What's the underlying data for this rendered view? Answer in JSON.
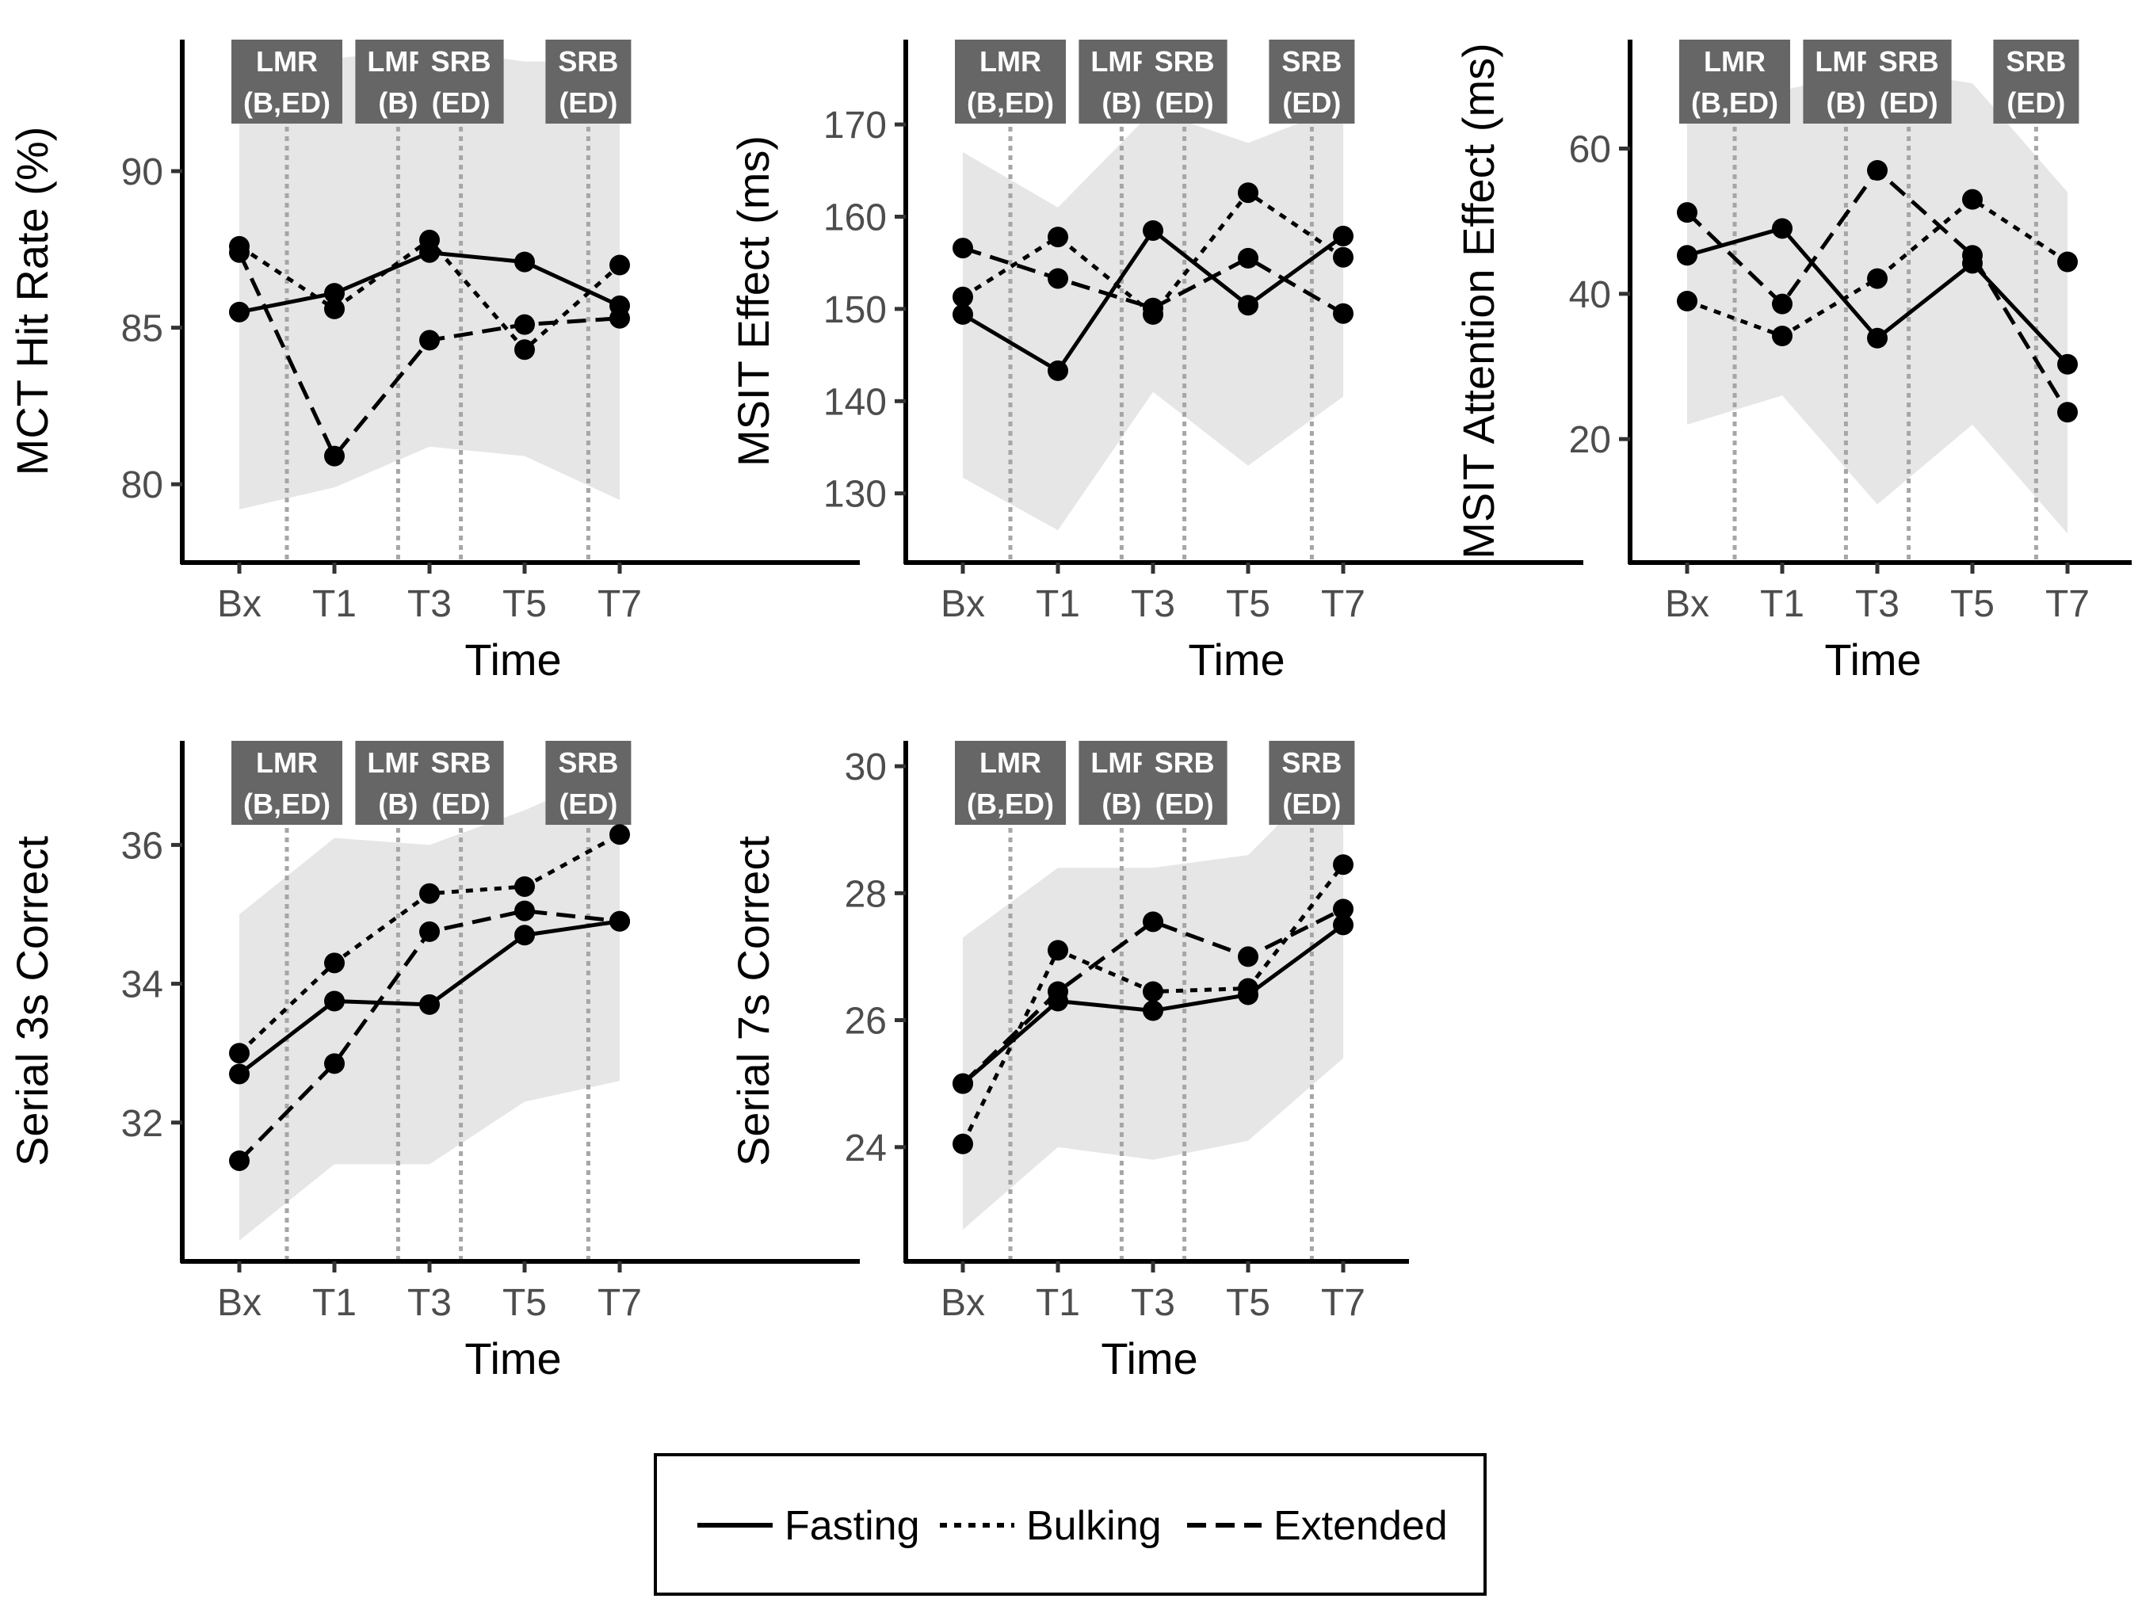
{
  "figure": {
    "legend": {
      "items": [
        {
          "label": "Fasting",
          "dash": "solid"
        },
        {
          "label": "Bulking",
          "dash": "dotted"
        },
        {
          "label": "Extended",
          "dash": "dashed"
        }
      ]
    }
  },
  "chart_data": [
    {
      "type": "line",
      "ylabel": "MCT Hit Rate (%)",
      "xlabel": "Time",
      "categories": [
        "Bx",
        "T1",
        "T3",
        "T5",
        "T7"
      ],
      "ylim": [
        77.5,
        94.2
      ],
      "yticks": [
        80,
        85,
        90
      ],
      "grid": false,
      "ribbon": {
        "lower": [
          79.2,
          79.9,
          81.2,
          80.9,
          79.5
        ],
        "upper": [
          93.3,
          93.6,
          93.9,
          93.5,
          93.5
        ]
      },
      "phases": [
        {
          "line1": "LMR",
          "line2": "(B,ED)",
          "at": 0.5
        },
        {
          "line1": "LMR",
          "line2": "(B)",
          "at": 1.67
        },
        {
          "line1": "SRB",
          "line2": "(ED)",
          "at": 2.33
        },
        {
          "line1": "SRB",
          "line2": "(ED)",
          "at": 3.67
        }
      ],
      "series": [
        {
          "name": "Fasting",
          "dash": "solid",
          "values": [
            85.5,
            86.1,
            87.4,
            87.1,
            85.7
          ]
        },
        {
          "name": "Bulking",
          "dash": "dotted",
          "values": [
            87.6,
            85.6,
            87.8,
            84.3,
            87.0
          ]
        },
        {
          "name": "Extended",
          "dash": "dashed",
          "values": [
            87.4,
            80.9,
            84.6,
            85.1,
            85.3
          ]
        }
      ]
    },
    {
      "type": "line",
      "ylabel": "MSIT Effect (ms)",
      "xlabel": "Time",
      "categories": [
        "Bx",
        "T1",
        "T3",
        "T5",
        "T7"
      ],
      "ylim": [
        122.5,
        179.2
      ],
      "yticks": [
        130,
        140,
        150,
        160,
        170
      ],
      "grid": false,
      "ribbon": {
        "lower": [
          131.7,
          126.0,
          141.0,
          133.0,
          140.5
        ],
        "upper": [
          167.0,
          161.0,
          171.5,
          168.0,
          172.0
        ]
      },
      "phases": [
        {
          "line1": "LMR",
          "line2": "(B,ED)",
          "at": 0.5
        },
        {
          "line1": "LMR",
          "line2": "(B)",
          "at": 1.67
        },
        {
          "line1": "SRB",
          "line2": "(ED)",
          "at": 2.33
        },
        {
          "line1": "SRB",
          "line2": "(ED)",
          "at": 3.67
        }
      ],
      "series": [
        {
          "name": "Fasting",
          "dash": "solid",
          "values": [
            149.4,
            143.3,
            158.5,
            150.4,
            157.9
          ]
        },
        {
          "name": "Bulking",
          "dash": "dotted",
          "values": [
            151.3,
            157.8,
            149.4,
            162.6,
            155.6
          ]
        },
        {
          "name": "Extended",
          "dash": "dashed",
          "values": [
            156.6,
            153.3,
            150.1,
            155.5,
            149.5
          ]
        }
      ]
    },
    {
      "type": "line",
      "ylabel": "MSIT Attention Effect (ms)",
      "xlabel": "Time",
      "categories": [
        "Bx",
        "T1",
        "T3",
        "T5",
        "T7"
      ],
      "ylim": [
        3.0,
        75.0
      ],
      "yticks": [
        20,
        40,
        60
      ],
      "grid": false,
      "ribbon": {
        "lower": [
          22.0,
          26.0,
          11.0,
          22.0,
          7.0
        ],
        "upper": [
          69.0,
          68.0,
          71.0,
          69.0,
          54.0
        ]
      },
      "phases": [
        {
          "line1": "LMR",
          "line2": "(B,ED)",
          "at": 0.5
        },
        {
          "line1": "LMR",
          "line2": "(B)",
          "at": 1.67
        },
        {
          "line1": "SRB",
          "line2": "(ED)",
          "at": 2.33
        },
        {
          "line1": "SRB",
          "line2": "(ED)",
          "at": 3.67
        }
      ],
      "series": [
        {
          "name": "Fasting",
          "dash": "solid",
          "values": [
            45.3,
            49.0,
            33.9,
            44.2,
            30.3
          ]
        },
        {
          "name": "Bulking",
          "dash": "dotted",
          "values": [
            39.0,
            34.2,
            42.1,
            53.0,
            44.4
          ]
        },
        {
          "name": "Extended",
          "dash": "dashed",
          "values": [
            51.2,
            38.6,
            57.0,
            45.3,
            23.7
          ]
        }
      ]
    },
    {
      "type": "line",
      "ylabel": "Serial 3s Correct",
      "xlabel": "Time",
      "categories": [
        "Bx",
        "T1",
        "T3",
        "T5",
        "T7"
      ],
      "ylim": [
        30.0,
        37.5
      ],
      "yticks": [
        32,
        34,
        36
      ],
      "grid": false,
      "ribbon": {
        "lower": [
          30.3,
          31.4,
          31.4,
          32.3,
          32.6
        ],
        "upper": [
          35.0,
          36.1,
          36.0,
          36.5,
          37.1
        ]
      },
      "phases": [
        {
          "line1": "LMR",
          "line2": "(B,ED)",
          "at": 0.5
        },
        {
          "line1": "LMR",
          "line2": "(B)",
          "at": 1.67
        },
        {
          "line1": "SRB",
          "line2": "(ED)",
          "at": 2.33
        },
        {
          "line1": "SRB",
          "line2": "(ED)",
          "at": 3.67
        }
      ],
      "series": [
        {
          "name": "Fasting",
          "dash": "solid",
          "values": [
            32.7,
            33.75,
            33.7,
            34.7,
            34.9
          ]
        },
        {
          "name": "Bulking",
          "dash": "dotted",
          "values": [
            33.0,
            34.3,
            35.3,
            35.4,
            36.15
          ]
        },
        {
          "name": "Extended",
          "dash": "dashed",
          "values": [
            31.45,
            32.85,
            34.75,
            35.05,
            34.9
          ]
        }
      ]
    },
    {
      "type": "line",
      "ylabel": "Serial 7s Correct",
      "xlabel": "Time",
      "categories": [
        "Bx",
        "T1",
        "T3",
        "T5",
        "T7"
      ],
      "ylim": [
        22.2,
        30.4
      ],
      "yticks": [
        24,
        26,
        28,
        30
      ],
      "grid": false,
      "ribbon": {
        "lower": [
          22.7,
          24.0,
          23.8,
          24.1,
          25.4
        ],
        "upper": [
          27.3,
          28.4,
          28.4,
          28.6,
          30.1
        ]
      },
      "phases": [
        {
          "line1": "LMR",
          "line2": "(B,ED)",
          "at": 0.5
        },
        {
          "line1": "LMR",
          "line2": "(B)",
          "at": 1.67
        },
        {
          "line1": "SRB",
          "line2": "(ED)",
          "at": 2.33
        },
        {
          "line1": "SRB",
          "line2": "(ED)",
          "at": 3.67
        }
      ],
      "series": [
        {
          "name": "Fasting",
          "dash": "solid",
          "values": [
            25.0,
            26.3,
            26.15,
            26.4,
            27.5
          ]
        },
        {
          "name": "Bulking",
          "dash": "dotted",
          "values": [
            24.05,
            27.1,
            26.45,
            26.5,
            28.45
          ]
        },
        {
          "name": "Extended",
          "dash": "dashed",
          "values": [
            25.0,
            26.45,
            27.55,
            27.0,
            27.75
          ]
        }
      ]
    }
  ]
}
